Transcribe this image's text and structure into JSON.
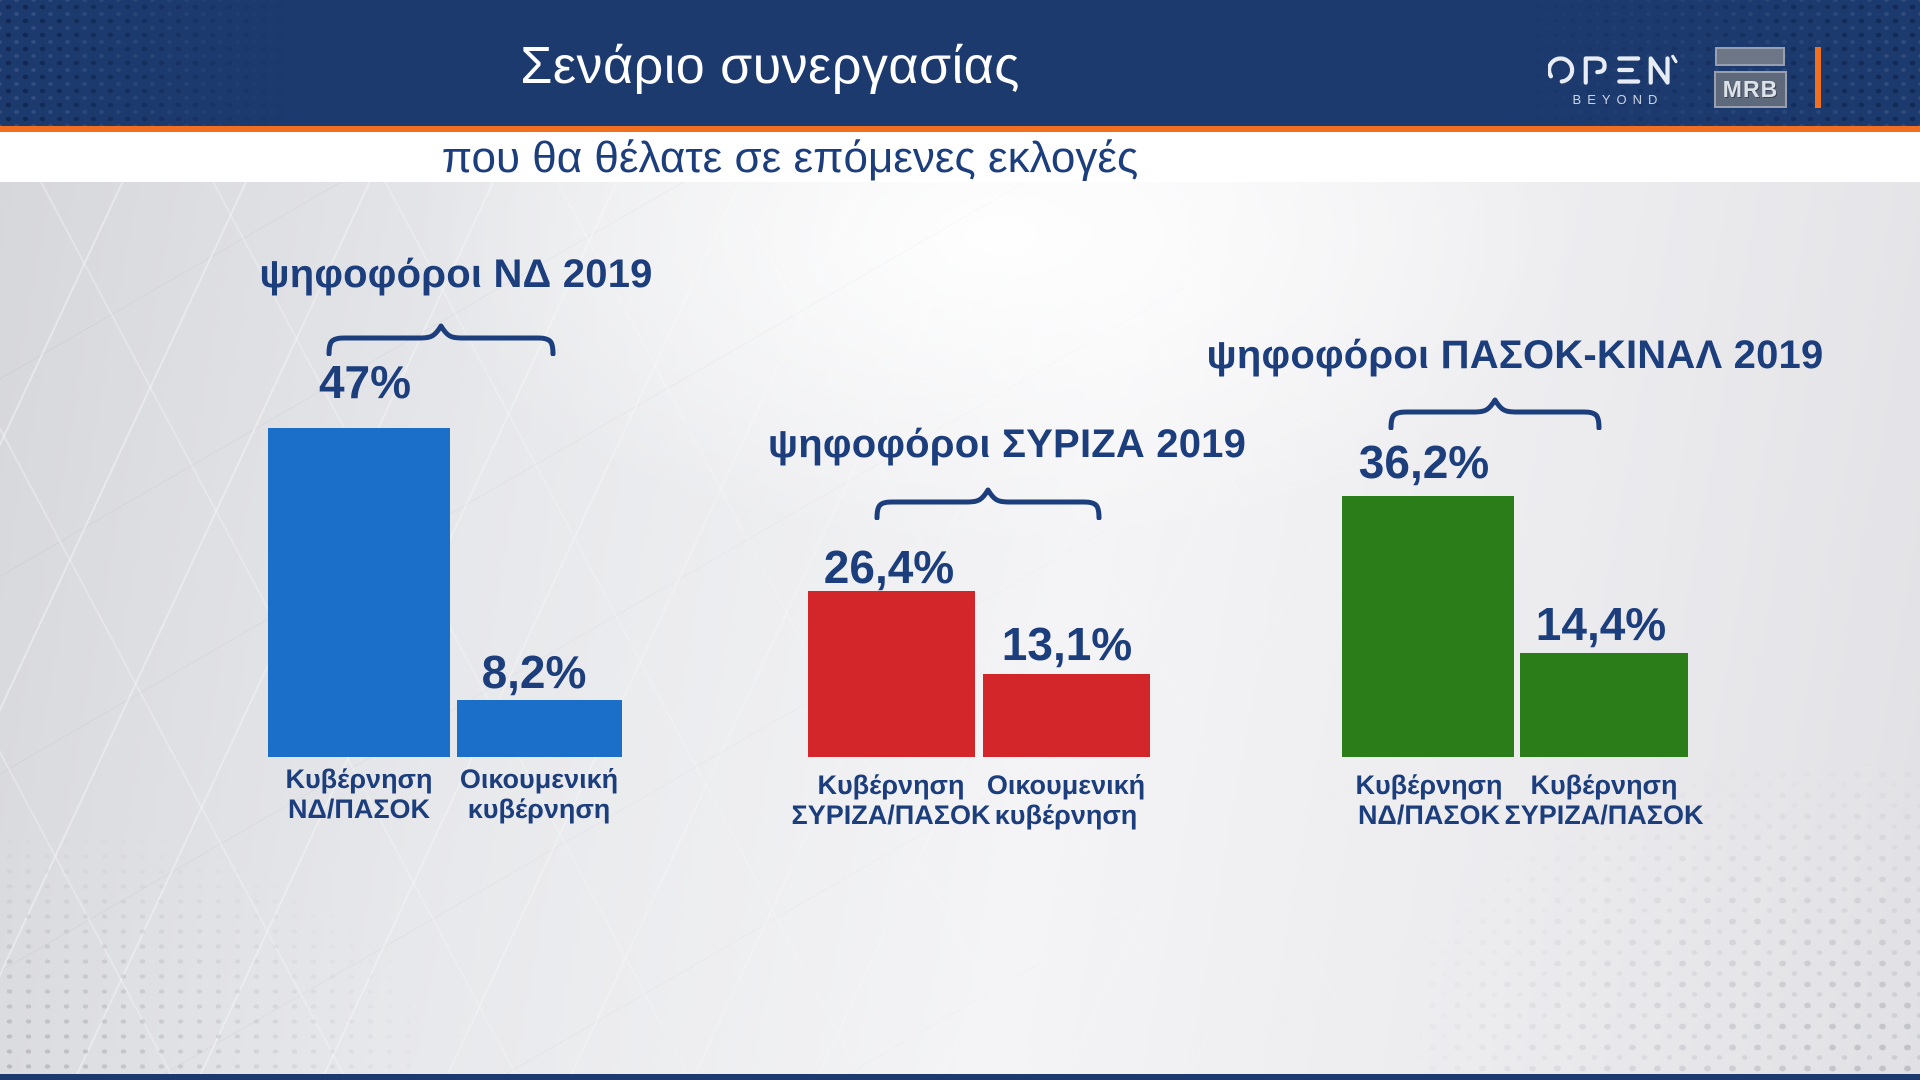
{
  "chart_data": {
    "type": "bar",
    "title": "Σενάριο συνεργασίας",
    "subtitle": "που θα θέλατε σε επόμενες εκλογές",
    "unit": "%",
    "value_labels": true,
    "grid": false,
    "legend": false,
    "groups": [
      {
        "name": "ψηφοφόροι ΝΔ 2019",
        "color": "#1b6fc9",
        "bars": [
          {
            "label": "Κυβέρνηση ΝΔ/ΠΑΣΟΚ",
            "label_lines": [
              "Κυβέρνηση",
              "ΝΔ/ΠΑΣΟΚ"
            ],
            "value": 47,
            "display": "47%"
          },
          {
            "label": "Οικουμενική κυβέρνηση",
            "label_lines": [
              "Οικουμενική",
              "κυβέρνηση"
            ],
            "value": 8.2,
            "display": "8,2%"
          }
        ]
      },
      {
        "name": "ψηφοφόροι ΣΥΡΙΖΑ 2019",
        "color": "#d2262b",
        "bars": [
          {
            "label": "Κυβέρνηση ΣΥΡΙΖΑ/ΠΑΣΟΚ",
            "label_lines": [
              "Κυβέρνηση",
              "ΣΥΡΙΖΑ/ΠΑΣΟΚ"
            ],
            "value": 26.4,
            "display": "26,4%"
          },
          {
            "label": "Οικουμενική κυβέρνηση",
            "label_lines": [
              "Οικουμενική",
              "κυβέρνηση"
            ],
            "value": 13.1,
            "display": "13,1%"
          }
        ]
      },
      {
        "name": "ψηφοφόροι ΠΑΣΟΚ-ΚΙΝΑΛ 2019",
        "color": "#2a7d19",
        "bars": [
          {
            "label": "Κυβέρνηση ΝΔ/ΠΑΣΟΚ",
            "label_lines": [
              "Κυβέρνηση",
              "ΝΔ/ΠΑΣΟΚ"
            ],
            "value": 36.2,
            "display": "36,2%"
          },
          {
            "label": "Κυβέρνηση ΣΥΡΙΖΑ/ΠΑΣΟΚ",
            "label_lines": [
              "Κυβέρνηση",
              "ΣΥΡΙΖΑ/ΠΑΣΟΚ"
            ],
            "value": 14.4,
            "display": "14,4%"
          }
        ]
      }
    ]
  },
  "header": {
    "open_logo": {
      "name": "OPEN",
      "tagline": "BEYOND"
    },
    "mrb_logo": "MRB"
  },
  "colors": {
    "header_bg": "#1c3a6e",
    "header_text": "#ffffff",
    "accent_orange": "#f26f1f",
    "text_navy": "#1c3e7d"
  }
}
